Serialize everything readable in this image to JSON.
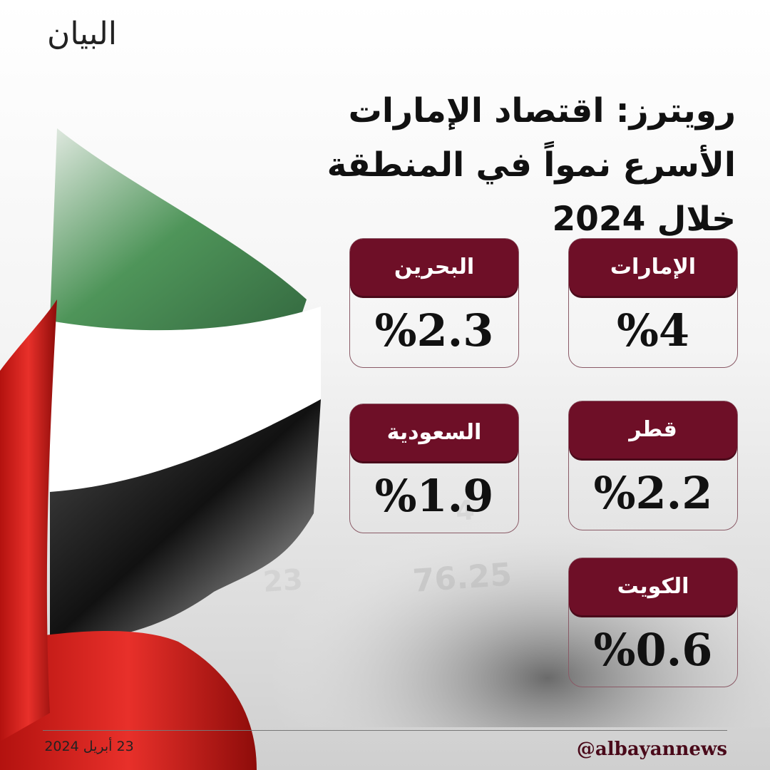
{
  "brand": {
    "logo_text": "البيان"
  },
  "headline": {
    "text": "رويترز: اقتصاد الإمارات الأسرع نمواً في المنطقة خلال 2024"
  },
  "cards": [
    {
      "country": "الإمارات",
      "value": "%4"
    },
    {
      "country": "البحرين",
      "value": "%2.3"
    },
    {
      "country": "قطر",
      "value": "%2.2"
    },
    {
      "country": "السعودية",
      "value": "%1.9"
    },
    {
      "country": "الكويت",
      "value": "%0.6"
    }
  ],
  "footer": {
    "date": "23 أبريل 2024",
    "handle": "@albayannews"
  },
  "colors": {
    "card_label_bg": "#6e0f27",
    "flag_green": "#2f7a3e",
    "flag_white": "#ffffff",
    "flag_black": "#1a1a1a",
    "flag_red": "#d8201e"
  }
}
